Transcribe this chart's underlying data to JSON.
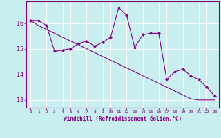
{
  "title": "",
  "xlabel": "Windchill (Refroidissement éolien,°C)",
  "ylabel": "",
  "background_color": "#c8eef0",
  "line_color": "#800080",
  "grid_color": "#ffffff",
  "x_data": [
    0,
    1,
    2,
    3,
    4,
    5,
    6,
    7,
    8,
    9,
    10,
    11,
    12,
    13,
    14,
    15,
    16,
    17,
    18,
    19,
    20,
    21,
    22,
    23
  ],
  "y_jagged": [
    16.1,
    16.1,
    15.9,
    14.9,
    14.95,
    15.0,
    15.2,
    15.3,
    15.1,
    15.25,
    15.45,
    16.6,
    16.3,
    15.05,
    15.55,
    15.6,
    15.6,
    13.8,
    14.1,
    14.2,
    13.95,
    13.8,
    13.5,
    13.15
  ],
  "y_trend": [
    16.1,
    15.9,
    15.75,
    15.6,
    15.45,
    15.3,
    15.15,
    15.0,
    14.85,
    14.7,
    14.55,
    14.4,
    14.25,
    14.1,
    13.95,
    13.8,
    13.65,
    13.5,
    13.35,
    13.2,
    13.05,
    13.0,
    13.0,
    13.0
  ],
  "ylim": [
    12.7,
    16.85
  ],
  "yticks": [
    13,
    14,
    15,
    16
  ],
  "xlim": [
    -0.5,
    23.5
  ],
  "xticks": [
    0,
    1,
    2,
    3,
    4,
    5,
    6,
    7,
    8,
    9,
    10,
    11,
    12,
    13,
    14,
    15,
    16,
    17,
    18,
    19,
    20,
    21,
    22,
    23
  ]
}
